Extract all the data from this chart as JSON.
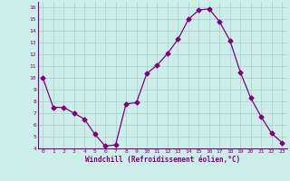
{
  "x": [
    0,
    1,
    2,
    3,
    4,
    5,
    6,
    7,
    8,
    9,
    10,
    11,
    12,
    13,
    14,
    15,
    16,
    17,
    18,
    19,
    20,
    21,
    22,
    23
  ],
  "y": [
    10,
    7.5,
    7.5,
    7,
    6.5,
    5.2,
    4.2,
    4.3,
    7.8,
    7.9,
    10.4,
    11.1,
    12.1,
    13.3,
    15.0,
    15.8,
    15.9,
    14.8,
    13.2,
    10.5,
    8.3,
    6.7,
    5.3,
    4.5
  ],
  "line_color": "#800080",
  "marker": "D",
  "marker_size": 2.5,
  "background_color": "#cceee8",
  "grid_color": "#aacccc",
  "xlabel": "Windchill (Refroidissement éolien,°C)",
  "xlabel_color": "#800080",
  "tick_color": "#800080",
  "ylim": [
    4,
    16.5
  ],
  "xlim": [
    -0.5,
    23.5
  ],
  "yticks": [
    4,
    5,
    6,
    7,
    8,
    9,
    10,
    11,
    12,
    13,
    14,
    15,
    16
  ],
  "xticks": [
    0,
    1,
    2,
    3,
    4,
    5,
    6,
    7,
    8,
    9,
    10,
    11,
    12,
    13,
    14,
    15,
    16,
    17,
    18,
    19,
    20,
    21,
    22,
    23
  ]
}
